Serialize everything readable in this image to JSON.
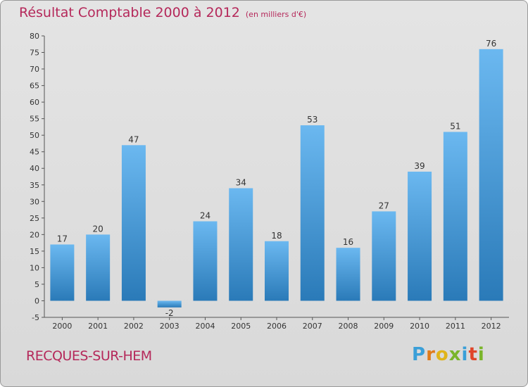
{
  "title": "Résultat Comptable 2000 à 2012",
  "subtitle": "(en milliers d'€)",
  "place": "RECQUES-SUR-HEM",
  "brand": {
    "letters": [
      "P",
      "r",
      "o",
      "x",
      "i",
      "t",
      "i"
    ],
    "colors": [
      "#3a9fd8",
      "#e07b1a",
      "#e0b41a",
      "#7ab52a",
      "#3a9fd8",
      "#e0452a",
      "#7ab52a"
    ]
  },
  "colors": {
    "bar_top": "#6bb8f0",
    "bar_bottom": "#2a7ab8",
    "title": "#b5285a"
  },
  "chart_data": {
    "type": "bar",
    "categories": [
      "2000",
      "2001",
      "2002",
      "2003",
      "2004",
      "2005",
      "2006",
      "2007",
      "2008",
      "2009",
      "2010",
      "2011",
      "2012"
    ],
    "values": [
      17,
      20,
      47,
      -2,
      24,
      34,
      18,
      53,
      16,
      27,
      39,
      51,
      76
    ],
    "ylim": [
      -5,
      80
    ],
    "yticks": [
      -5,
      0,
      5,
      10,
      15,
      20,
      25,
      30,
      35,
      40,
      45,
      50,
      55,
      60,
      65,
      70,
      75,
      80
    ],
    "grid": false
  }
}
